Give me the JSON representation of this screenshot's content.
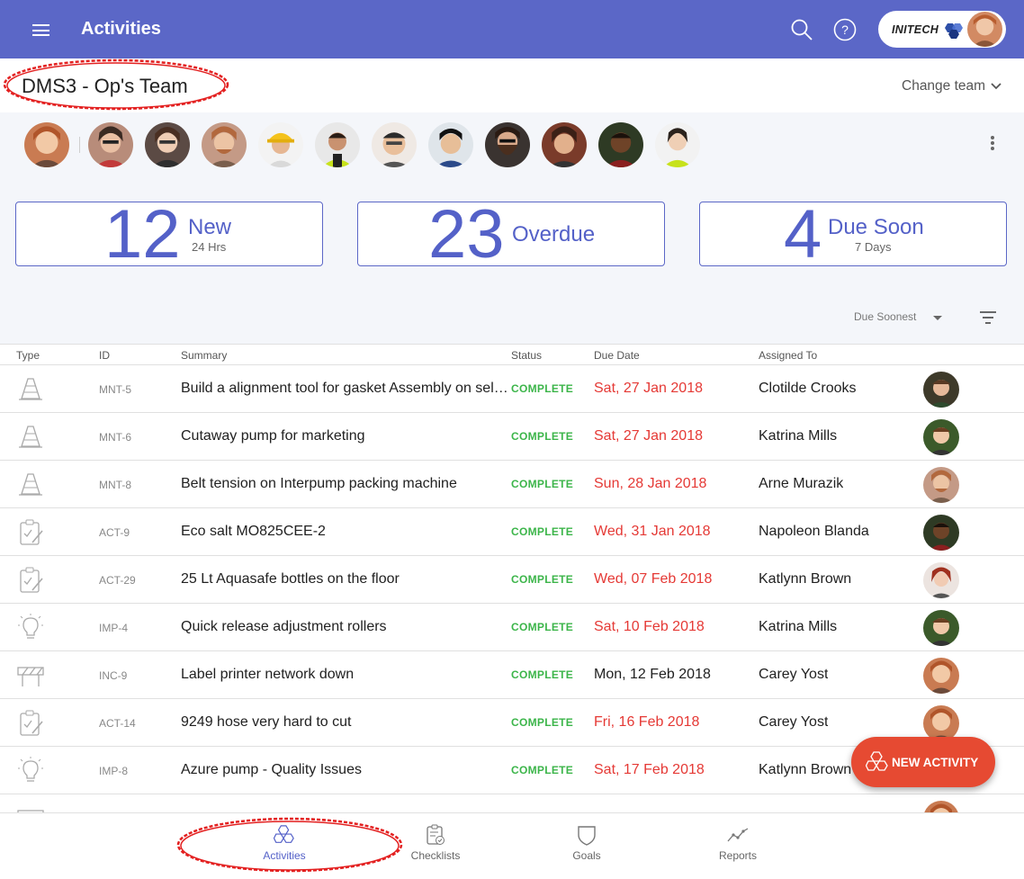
{
  "appbar": {
    "title": "Activities",
    "brand": "INITECH"
  },
  "team": {
    "name": "DMS3 - Op's Team",
    "change_label": "Change team"
  },
  "members": [
    "m1",
    "m2",
    "m3",
    "m4",
    "m5",
    "m6",
    "m7",
    "m8",
    "m9",
    "m10",
    "m11",
    "m12"
  ],
  "stats": [
    {
      "value": "12",
      "label": "New",
      "sub": "24 Hrs"
    },
    {
      "value": "23",
      "label": "Overdue",
      "sub": ""
    },
    {
      "value": "4",
      "label": "Due Soon",
      "sub": "7 Days"
    }
  ],
  "sort": {
    "label": "Due Soonest"
  },
  "table": {
    "headers": {
      "type": "Type",
      "id": "ID",
      "summary": "Summary",
      "status": "Status",
      "due": "Due Date",
      "assigned": "Assigned To"
    },
    "rows": [
      {
        "icon": "cone-icon",
        "id": "MNT-5",
        "summary": "Build a alignment tool for gasket Assembly on self…",
        "status": "COMPLETE",
        "due": "Sat, 27 Jan 2018",
        "overdue": true,
        "assigned": "Clotilde Crooks"
      },
      {
        "icon": "cone-icon",
        "id": "MNT-6",
        "summary": "Cutaway pump for marketing",
        "status": "COMPLETE",
        "due": "Sat, 27 Jan 2018",
        "overdue": true,
        "assigned": "Katrina Mills"
      },
      {
        "icon": "cone-icon",
        "id": "MNT-8",
        "summary": "Belt tension on Interpump packing machine",
        "status": "COMPLETE",
        "due": "Sun, 28 Jan 2018",
        "overdue": true,
        "assigned": "Arne Murazik"
      },
      {
        "icon": "clipboard-icon",
        "id": "ACT-9",
        "summary": "Eco salt MO825CEE-2",
        "status": "COMPLETE",
        "due": "Wed, 31 Jan 2018",
        "overdue": true,
        "assigned": "Napoleon Blanda"
      },
      {
        "icon": "clipboard-icon",
        "id": "ACT-29",
        "summary": "25 Lt Aquasafe bottles on the floor",
        "status": "COMPLETE",
        "due": "Wed, 07 Feb 2018",
        "overdue": true,
        "assigned": "Katlynn Brown"
      },
      {
        "icon": "lightbulb-icon",
        "id": "IMP-4",
        "summary": "Quick release adjustment rollers",
        "status": "COMPLETE",
        "due": "Sat, 10 Feb 2018",
        "overdue": true,
        "assigned": "Katrina Mills"
      },
      {
        "icon": "barrier-icon",
        "id": "INC-9",
        "summary": "Label printer network down",
        "status": "COMPLETE",
        "due": "Mon, 12 Feb 2018",
        "overdue": false,
        "assigned": "Carey Yost"
      },
      {
        "icon": "clipboard-icon",
        "id": "ACT-14",
        "summary": "9249 hose very hard to cut",
        "status": "COMPLETE",
        "due": "Fri, 16 Feb 2018",
        "overdue": true,
        "assigned": "Carey Yost"
      },
      {
        "icon": "lightbulb-icon",
        "id": "IMP-8",
        "summary": "Azure pump - Quality Issues",
        "status": "COMPLETE",
        "due": "Sat, 17 Feb 2018",
        "overdue": true,
        "assigned": "Katlynn Brown"
      }
    ]
  },
  "fab": {
    "label": "NEW ACTIVITY"
  },
  "nav": [
    {
      "label": "Activities",
      "icon": "hexagons-icon",
      "active": true
    },
    {
      "label": "Checklists",
      "icon": "checklist-icon",
      "active": false
    },
    {
      "label": "Goals",
      "icon": "shield-icon",
      "active": false
    },
    {
      "label": "Reports",
      "icon": "line-chart-icon",
      "active": false
    }
  ],
  "colors": {
    "primary": "#5b67c7",
    "overdue": "#e53935",
    "complete": "#3cb54a",
    "fab": "#e64a32",
    "annotation": "#e32020"
  }
}
